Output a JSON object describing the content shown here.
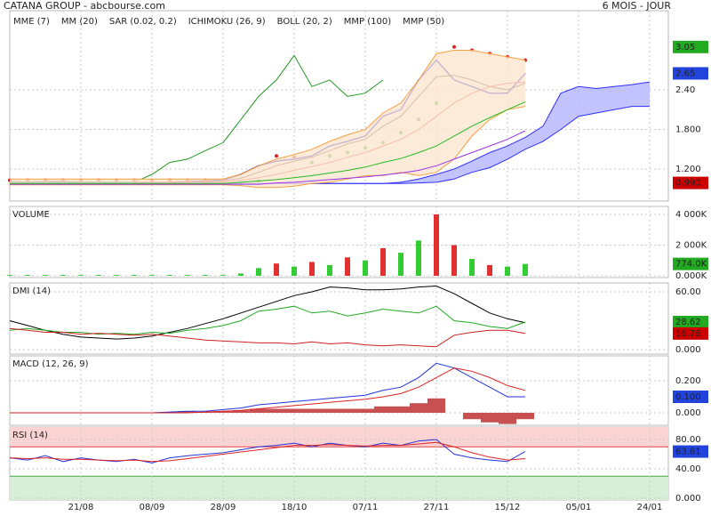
{
  "chart_data": [
    {
      "type": "line",
      "title": "CATANA GROUP - abcbourse.com",
      "subtitle": "6 MOIS - JOUR",
      "categories": [
        null,
        null,
        null,
        null,
        "21/08",
        null,
        null,
        null,
        "08/09",
        null,
        null,
        null,
        "28/09",
        null,
        null,
        null,
        "18/10",
        null,
        null,
        null,
        "07/11",
        null,
        null,
        null,
        "27/11",
        null,
        null,
        null,
        "15/12",
        null,
        null,
        null,
        "05/01",
        null,
        null,
        null,
        "24/01",
        null
      ],
      "ylim": [
        0.715,
        3.6
      ],
      "yticks": [
        {
          "value": 1.2,
          "label": "1.200"
        },
        {
          "value": 1.8,
          "label": "1.800"
        },
        {
          "value": 2.4,
          "label": "2.40"
        }
      ],
      "series": [
        {
          "color": "#0000cc",
          "values": [
            1.01,
            1.0,
            1.01,
            1.01,
            1.0,
            1.0,
            0.99,
            0.99,
            0.99,
            1.0,
            1.01,
            1.02,
            1.03,
            1.12,
            1.25,
            1.32,
            1.35,
            1.4,
            1.55,
            1.62,
            1.7,
            2.0,
            2.1,
            2.55,
            2.85,
            2.55,
            2.45,
            2.35,
            2.35,
            2.65,
            null,
            null,
            null,
            null,
            null,
            null,
            null,
            null
          ]
        },
        {
          "name": "MME (7)",
          "color": "#4a1400",
          "values": [
            1.0,
            1.0,
            1.0,
            1.0,
            1.0,
            1.0,
            1.0,
            1.0,
            1.0,
            1.0,
            1.0,
            1.01,
            1.02,
            1.06,
            1.15,
            1.25,
            1.32,
            1.38,
            1.48,
            1.58,
            1.65,
            1.85,
            2.0,
            2.3,
            2.6,
            2.62,
            2.55,
            2.45,
            2.4,
            2.5,
            null,
            null,
            null,
            null,
            null,
            null,
            null,
            null
          ]
        },
        {
          "name": "MM (20)",
          "color": "#e02020",
          "values": [
            1.0,
            1.0,
            1.0,
            1.0,
            1.0,
            1.0,
            1.0,
            1.0,
            1.0,
            1.0,
            1.0,
            1.0,
            1.0,
            1.03,
            1.07,
            1.12,
            1.18,
            1.24,
            1.3,
            1.38,
            1.45,
            1.55,
            1.65,
            1.8,
            2.0,
            2.2,
            2.35,
            2.45,
            2.5,
            2.52,
            null,
            null,
            null,
            null,
            null,
            null,
            null,
            null
          ]
        },
        {
          "name": "SAR (0.02, 0.2)",
          "color": "#e02020",
          "style": "dots",
          "values": [
            1.03,
            1.03,
            1.03,
            1.03,
            1.03,
            1.03,
            1.03,
            1.03,
            1.03,
            1.03,
            1.03,
            1.03,
            1.03,
            0.98,
            1.02,
            1.4,
            1.38,
            1.3,
            1.4,
            1.45,
            1.52,
            1.6,
            1.75,
            1.95,
            2.2,
            3.05,
            3.0,
            2.95,
            2.9,
            2.85,
            null,
            null,
            null,
            null,
            null,
            null,
            null,
            null
          ]
        },
        {
          "name": "ICHIMOKU (26, 9)",
          "color": "#3030ff",
          "fill": "#b4b4ff",
          "upper": [
            0.98,
            0.98,
            0.98,
            0.98,
            0.98,
            0.98,
            0.98,
            0.98,
            0.98,
            0.98,
            0.98,
            0.98,
            0.98,
            0.98,
            0.98,
            0.98,
            0.98,
            0.98,
            0.98,
            0.98,
            0.98,
            0.98,
            1.0,
            1.05,
            1.12,
            1.2,
            1.32,
            1.45,
            1.55,
            1.68,
            1.85,
            2.35,
            2.45,
            2.42,
            2.45,
            2.48,
            2.52,
            null
          ],
          "lower": [
            0.98,
            0.98,
            0.98,
            0.98,
            0.98,
            0.98,
            0.98,
            0.98,
            0.98,
            0.98,
            0.98,
            0.98,
            0.98,
            0.98,
            0.98,
            0.98,
            0.98,
            0.98,
            0.98,
            0.98,
            0.98,
            0.98,
            0.98,
            0.99,
            1.0,
            1.05,
            1.15,
            1.22,
            1.35,
            1.5,
            1.62,
            1.8,
            2.0,
            2.05,
            2.1,
            2.15,
            2.15,
            null
          ],
          "lag_color": "#229922",
          "lag": [
            1.0,
            1.0,
            1.0,
            1.0,
            1.0,
            1.0,
            1.0,
            1.0,
            1.12,
            1.3,
            1.35,
            1.48,
            1.6,
            1.95,
            2.3,
            2.55,
            2.92,
            2.45,
            2.55,
            2.3,
            2.35,
            2.55,
            null,
            null,
            null,
            null,
            null,
            null,
            null,
            null,
            null,
            null,
            null,
            null,
            null,
            null,
            null,
            null
          ]
        },
        {
          "name": "BOLL (20, 2)",
          "color": "#f5a040",
          "fill": "#fde6cf",
          "upper": [
            1.05,
            1.05,
            1.05,
            1.05,
            1.05,
            1.05,
            1.05,
            1.05,
            1.05,
            1.05,
            1.05,
            1.05,
            1.05,
            1.12,
            1.25,
            1.35,
            1.42,
            1.5,
            1.62,
            1.72,
            1.8,
            2.05,
            2.2,
            2.55,
            2.95,
            3.0,
            3.0,
            2.95,
            2.9,
            2.85,
            null,
            null,
            null,
            null,
            null,
            null,
            null,
            null
          ],
          "lower": [
            0.96,
            0.96,
            0.96,
            0.96,
            0.96,
            0.96,
            0.96,
            0.96,
            0.96,
            0.96,
            0.96,
            0.96,
            0.96,
            0.95,
            0.92,
            0.92,
            0.94,
            0.98,
            1.0,
            1.05,
            1.1,
            1.1,
            1.15,
            1.1,
            1.15,
            1.35,
            1.7,
            1.95,
            2.1,
            2.15,
            null,
            null,
            null,
            null,
            null,
            null,
            null,
            null
          ]
        },
        {
          "name": "MMP (100)",
          "color": "#9933ee",
          "values": [
            0.97,
            0.97,
            0.97,
            0.97,
            0.97,
            0.97,
            0.97,
            0.97,
            0.97,
            0.97,
            0.97,
            0.97,
            0.97,
            0.97,
            0.97,
            0.99,
            1.0,
            1.02,
            1.04,
            1.06,
            1.08,
            1.11,
            1.14,
            1.18,
            1.25,
            1.35,
            1.45,
            1.55,
            1.65,
            1.78,
            null,
            null,
            null,
            null,
            null,
            null,
            null,
            null
          ]
        },
        {
          "name": "MMP (50)",
          "color": "#22bb22",
          "values": [
            0.98,
            0.98,
            0.98,
            0.98,
            0.98,
            0.98,
            0.98,
            0.98,
            0.98,
            0.98,
            0.98,
            0.98,
            0.98,
            1.0,
            1.02,
            1.04,
            1.07,
            1.1,
            1.14,
            1.18,
            1.23,
            1.3,
            1.36,
            1.45,
            1.55,
            1.7,
            1.85,
            1.98,
            2.1,
            2.22,
            null,
            null,
            null,
            null,
            null,
            null,
            null,
            null
          ]
        }
      ],
      "last_labels": [
        {
          "value": 3.05,
          "label": "3.05",
          "color": "#22aa22"
        },
        {
          "value": 2.65,
          "label": "2.65",
          "color": "#2244dd"
        },
        {
          "value": 0.99,
          "label": "0.990",
          "color": "#cc0000"
        }
      ]
    },
    {
      "type": "bar",
      "title": "VOLUME",
      "title_color": "#22aa22",
      "ylim": [
        -116,
        4520
      ],
      "yticks": [
        {
          "value": 0,
          "label": "0.000K"
        },
        {
          "value": 2000,
          "label": "2 000K"
        },
        {
          "value": 4000,
          "label": "4 000K"
        }
      ],
      "values": [
        50,
        50,
        50,
        50,
        50,
        50,
        50,
        50,
        50,
        50,
        50,
        50,
        50,
        150,
        500,
        800,
        600,
        900,
        700,
        1200,
        1000,
        1800,
        1500,
        2300,
        4000,
        2000,
        1100,
        700,
        600,
        774,
        null,
        null,
        null,
        null,
        null,
        null,
        null,
        null
      ],
      "colors": [
        "#33cc33",
        "#33cc33",
        "#33cc33",
        "#33cc33",
        "#33cc33",
        "#33cc33",
        "#33cc33",
        "#33cc33",
        "#33cc33",
        "#33cc33",
        "#33cc33",
        "#33cc33",
        "#33cc33",
        "#33cc33",
        "#33cc33",
        "#e03030",
        "#33cc33",
        "#e03030",
        "#33cc33",
        "#e03030",
        "#33cc33",
        "#e03030",
        "#33cc33",
        "#33cc33",
        "#e03030",
        "#e03030",
        "#33cc33",
        "#e03030",
        "#33cc33",
        "#33cc33",
        null,
        null,
        null,
        null,
        null,
        null,
        null,
        null
      ],
      "last_labels": [
        {
          "value": 774,
          "label": "774.0K",
          "color": "#22aa22"
        }
      ]
    },
    {
      "type": "line",
      "title": "DMI (14)",
      "title_color": "#000000",
      "ylim": [
        -4.6,
        69.2
      ],
      "yticks": [
        {
          "value": 0,
          "label": "0.000"
        },
        {
          "value": 60,
          "label": "60.00"
        }
      ],
      "series": [
        {
          "color": "#000000",
          "values": [
            30,
            25,
            20,
            16,
            13,
            12,
            11,
            12,
            14,
            18,
            22,
            27,
            32,
            38,
            44,
            50,
            56,
            60,
            65,
            64,
            62,
            62,
            63,
            65,
            66,
            58,
            48,
            38,
            32,
            28,
            null,
            null,
            null,
            null,
            null,
            null,
            null,
            null
          ]
        },
        {
          "color": "#22aa22",
          "values": [
            20,
            22,
            20,
            18,
            18,
            16,
            17,
            16,
            18,
            17,
            20,
            22,
            25,
            30,
            40,
            42,
            45,
            38,
            40,
            35,
            38,
            42,
            40,
            38,
            45,
            30,
            28,
            24,
            22,
            28.62,
            null,
            null,
            null,
            null,
            null,
            null,
            null,
            null
          ]
        },
        {
          "color": "#cc2020",
          "values": [
            22,
            20,
            18,
            18,
            16,
            17,
            16,
            15,
            16,
            14,
            12,
            10,
            9,
            8,
            7,
            7,
            6,
            8,
            6,
            7,
            5,
            4,
            5,
            4,
            3,
            15,
            18,
            20,
            20,
            16.76,
            null,
            null,
            null,
            null,
            null,
            null,
            null,
            null
          ]
        }
      ],
      "last_labels": [
        {
          "value": 28.62,
          "label": "28.62",
          "color": "#22aa22"
        },
        {
          "value": 16.76,
          "label": "16.76",
          "color": "#cc0000"
        }
      ]
    },
    {
      "type": "line",
      "title": "MACD (12, 26, 9)",
      "title_color": "#0000aa",
      "ylim": [
        -0.078,
        0.356
      ],
      "yticks": [
        {
          "value": 0,
          "label": "0.000"
        },
        {
          "value": 0.2,
          "label": "0.200"
        }
      ],
      "histogram_color": "#c85050",
      "histogram": [
        0,
        0,
        0,
        0,
        0,
        0,
        0,
        0,
        0,
        0.005,
        0.01,
        0.005,
        0.01,
        0.015,
        0.025,
        0.025,
        0.025,
        0.025,
        0.025,
        0.025,
        0.025,
        0.04,
        0.04,
        0.06,
        0.09,
        0,
        -0.04,
        -0.06,
        -0.07,
        -0.04,
        null,
        null,
        null,
        null,
        null,
        null,
        null,
        null
      ],
      "series": [
        {
          "color": "#2233dd",
          "values": [
            0,
            0,
            0,
            0,
            0,
            0,
            0,
            0,
            0,
            0.005,
            0.01,
            0.01,
            0.02,
            0.03,
            0.05,
            0.06,
            0.07,
            0.08,
            0.09,
            0.1,
            0.11,
            0.14,
            0.16,
            0.22,
            0.31,
            0.28,
            0.22,
            0.16,
            0.1,
            0.1,
            null,
            null,
            null,
            null,
            null,
            null,
            null,
            null
          ]
        },
        {
          "color": "#dd2222",
          "values": [
            0,
            0,
            0,
            0,
            0,
            0,
            0,
            0,
            0,
            0,
            0,
            0.005,
            0.01,
            0.015,
            0.025,
            0.035,
            0.045,
            0.055,
            0.065,
            0.075,
            0.085,
            0.1,
            0.12,
            0.16,
            0.22,
            0.28,
            0.26,
            0.22,
            0.17,
            0.14,
            null,
            null,
            null,
            null,
            null,
            null,
            null,
            null
          ]
        }
      ],
      "last_labels": [
        {
          "value": 0.1,
          "label": "0.100",
          "color": "#2244dd"
        }
      ]
    },
    {
      "type": "line",
      "title": "RSI (14)",
      "title_color": "#0000aa",
      "ylim": [
        -2.4,
        97
      ],
      "yticks": [
        {
          "value": 0,
          "label": "0.000"
        },
        {
          "value": 40,
          "label": "40.00"
        },
        {
          "value": 80,
          "label": "80.00"
        }
      ],
      "overbought": 70,
      "oversold": 30,
      "series": [
        {
          "color": "#2233dd",
          "values": [
            55,
            52,
            58,
            50,
            55,
            52,
            50,
            53,
            48,
            55,
            58,
            60,
            62,
            66,
            70,
            72,
            75,
            70,
            75,
            72,
            70,
            75,
            72,
            78,
            80,
            60,
            55,
            52,
            50,
            63.61,
            null,
            null,
            null,
            null,
            null,
            null,
            null,
            null
          ]
        },
        {
          "color": "#dd2222",
          "values": [
            55,
            54,
            55,
            53,
            53,
            52,
            51,
            52,
            50,
            51,
            54,
            57,
            60,
            63,
            66,
            69,
            72,
            72,
            73,
            72,
            71,
            72,
            72,
            74,
            76,
            70,
            62,
            56,
            52,
            54,
            null,
            null,
            null,
            null,
            null,
            null,
            null,
            null
          ]
        }
      ],
      "last_labels": [
        {
          "value": 63.61,
          "label": "63.61",
          "color": "#2244dd"
        }
      ]
    }
  ]
}
